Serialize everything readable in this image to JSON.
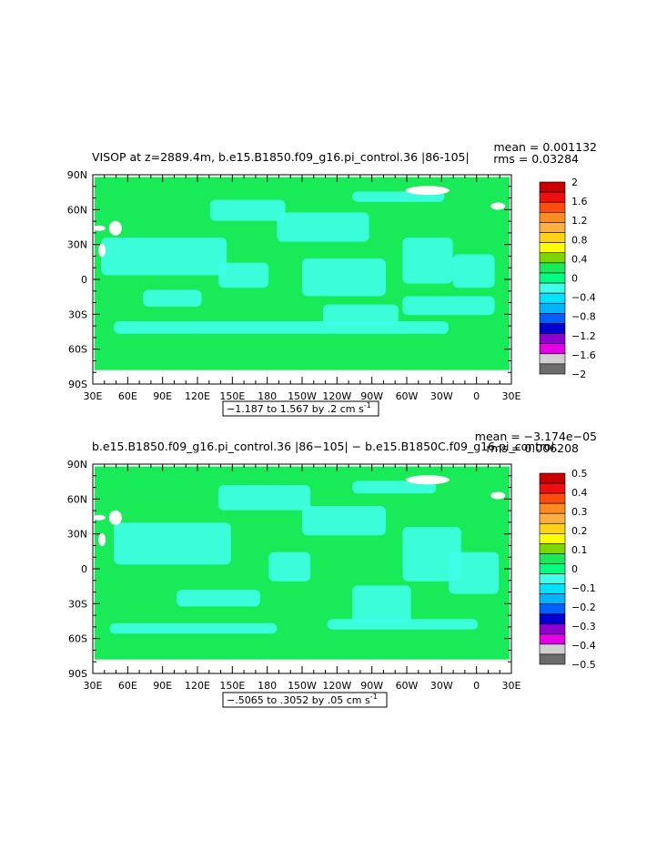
{
  "panels": [
    {
      "title": "VISOP at z=2889.4m, b.e15.B1850.f09_g16.pi_control.36 |86-105|",
      "mean": "mean = 0.001132",
      "rms": "rms = 0.03284",
      "range_note": "−1.187 to 1.567 by .2 cm s",
      "range_sup": "-1",
      "colorbar": {
        "labels": [
          "2",
          "1.6",
          "1.2",
          "0.8",
          "0.4",
          "0",
          "−0.4",
          "−0.8",
          "−1.2",
          "−1.6",
          "−2"
        ],
        "colors": [
          "#c80000",
          "#ee1010",
          "#ff4a10",
          "#ff8c20",
          "#ffb040",
          "#ffd21a",
          "#ffff00",
          "#7cd600",
          "#18ea58",
          "#00ff80",
          "#40ffe8",
          "#00e2ff",
          "#00b4ff",
          "#0060ff",
          "#0000d0",
          "#8c00d0",
          "#e400e4",
          "#d0d0d0",
          "#6c6c6c"
        ]
      }
    },
    {
      "title": "b.e15.B1850.f09_g16.pi_control.36 |86−105| − b.e15.B1850C.f09_g16.pi_control.",
      "mean": "mean = −3.174e−05",
      "rms": "rms = 0.006208",
      "range_note": "−.5065 to .3052 by .05 cm s",
      "range_sup": "-1",
      "colorbar": {
        "labels": [
          "0.5",
          "0.4",
          "0.3",
          "0.2",
          "0.1",
          "0",
          "−0.1",
          "−0.2",
          "−0.3",
          "−0.4",
          "−0.5"
        ],
        "colors": [
          "#c80000",
          "#ee1010",
          "#ff4a10",
          "#ff8c20",
          "#ffb040",
          "#ffd21a",
          "#ffff00",
          "#7cd600",
          "#18ea58",
          "#00ff80",
          "#40ffe8",
          "#00e2ff",
          "#00b4ff",
          "#0060ff",
          "#0000d0",
          "#8c00d0",
          "#e400e4",
          "#d0d0d0",
          "#6c6c6c"
        ]
      }
    }
  ],
  "axes": {
    "lat_labels": [
      "90N",
      "60N",
      "30N",
      "0",
      "30S",
      "60S",
      "90S"
    ],
    "lon_labels": [
      "30E",
      "60E",
      "90E",
      "120E",
      "150E",
      "180",
      "150W",
      "120W",
      "90W",
      "60W",
      "30W",
      "0",
      "30E"
    ]
  },
  "colors": {
    "ocean_zero": "#18ea58",
    "ocean_negative": "#40ffe8",
    "land": "#ffffff",
    "frame": "#000000"
  }
}
